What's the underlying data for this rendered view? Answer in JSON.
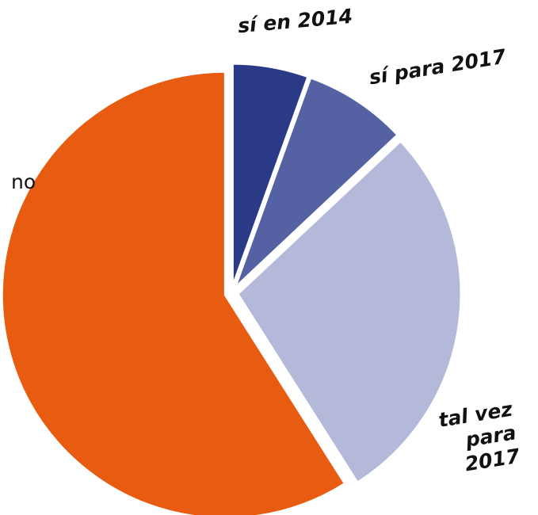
{
  "chart_data": {
    "type": "pie",
    "categories": [
      "sí en 2014",
      "sí para 2017",
      "tal vez para 2017",
      "no"
    ],
    "values": [
      5.5,
      7.5,
      28,
      59
    ],
    "colors": [
      "#2b3a87",
      "#5462a3",
      "#b5b9d9",
      "#e85c12"
    ]
  }
}
